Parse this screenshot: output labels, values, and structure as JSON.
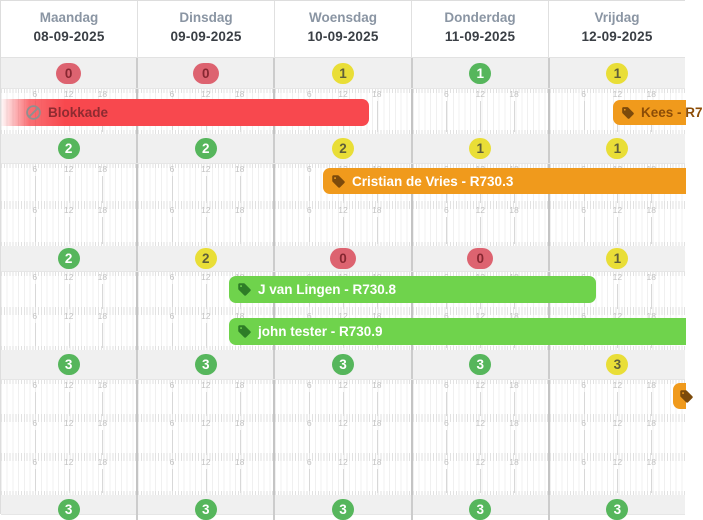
{
  "header": {
    "days": [
      {
        "name": "Maandag",
        "date": "08-09-2025"
      },
      {
        "name": "Dinsdag",
        "date": "09-09-2025"
      },
      {
        "name": "Woensdag",
        "date": "10-09-2025"
      },
      {
        "name": "Donderdag",
        "date": "11-09-2025"
      },
      {
        "name": "Vrijdag",
        "date": "12-09-2025"
      }
    ]
  },
  "timeline": {
    "hour_labels": [
      "6",
      "12",
      "18"
    ]
  },
  "rows": [
    {
      "counts": [
        {
          "value": "0",
          "status": "red"
        },
        {
          "value": "0",
          "status": "red"
        },
        {
          "value": "1",
          "status": "yellow"
        },
        {
          "value": "1",
          "status": "green"
        },
        {
          "value": "1",
          "status": "yellow"
        }
      ]
    },
    {
      "counts": [
        {
          "value": "2",
          "status": "green"
        },
        {
          "value": "2",
          "status": "green"
        },
        {
          "value": "2",
          "status": "yellow"
        },
        {
          "value": "1",
          "status": "yellow"
        },
        {
          "value": "1",
          "status": "yellow"
        }
      ]
    },
    {
      "counts": [
        {
          "value": "2",
          "status": "green"
        },
        {
          "value": "2",
          "status": "yellow"
        },
        {
          "value": "0",
          "status": "red"
        },
        {
          "value": "0",
          "status": "red"
        },
        {
          "value": "1",
          "status": "yellow"
        }
      ]
    },
    {
      "counts": [
        {
          "value": "3",
          "status": "green"
        },
        {
          "value": "3",
          "status": "green"
        },
        {
          "value": "3",
          "status": "green"
        },
        {
          "value": "3",
          "status": "green"
        },
        {
          "value": "3",
          "status": "yellow"
        }
      ]
    },
    {
      "counts": [
        {
          "value": "3",
          "status": "green"
        },
        {
          "value": "3",
          "status": "green"
        },
        {
          "value": "3",
          "status": "green"
        },
        {
          "value": "3",
          "status": "green"
        },
        {
          "value": "3",
          "status": "green"
        }
      ]
    }
  ],
  "events": [
    {
      "label": "Blokkade",
      "type": "blocked"
    },
    {
      "label": "Kees - R7",
      "type": "orange"
    },
    {
      "label": "Cristian de Vries - R730.3",
      "type": "orange"
    },
    {
      "label": "J van Lingen - R730.8",
      "type": "green"
    },
    {
      "label": "john tester - R730.9",
      "type": "green"
    },
    {
      "label": "",
      "type": "orange"
    }
  ],
  "colors": {
    "bar-red": "#f8484e",
    "bar-orange": "#f09a1c",
    "bar-green": "#6fd34c",
    "badge-red-bg": "#dd6370",
    "badge-red-text": "#872731",
    "badge-green-bg": "#56b65c",
    "badge-green-text": "#ffffff",
    "badge-yellow-bg": "#e9de37",
    "badge-yellow-text": "#5f5f3a",
    "blokkade-text": "#8e2b31",
    "kees-text": "#8c4d07",
    "tag-dark-orange": "#7c4a0b",
    "tag-dark-green": "#2e7d27"
  }
}
